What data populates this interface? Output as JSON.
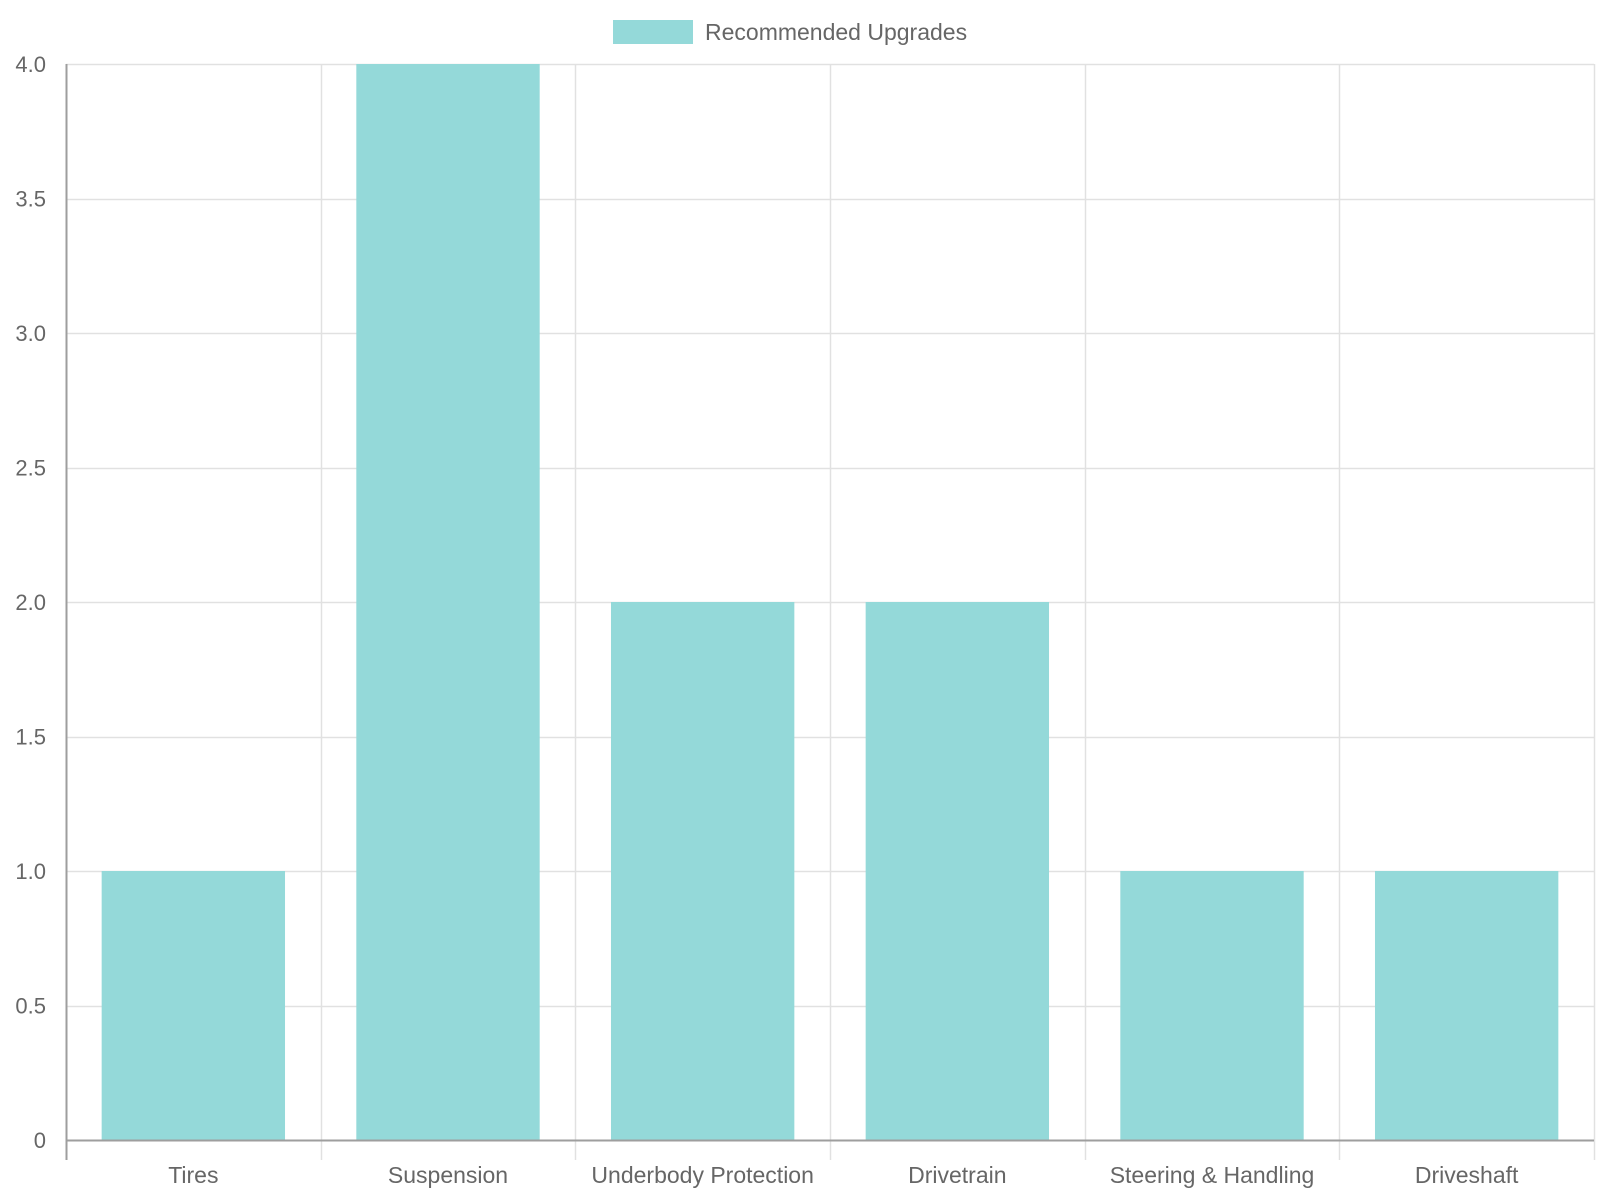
{
  "chart_data": {
    "type": "bar",
    "categories": [
      "Tires",
      "Suspension",
      "Underbody Protection",
      "Drivetrain",
      "Steering & Handling",
      "Driveshaft"
    ],
    "series": [
      {
        "name": "Recommended Upgrades",
        "values": [
          1,
          4,
          2,
          2,
          1,
          1
        ],
        "color": "#94d9d9"
      }
    ],
    "ylim": [
      0,
      4
    ],
    "yticks": [
      "0",
      "0.5",
      "1.0",
      "1.5",
      "2.0",
      "2.5",
      "3.0",
      "3.5",
      "4.0"
    ],
    "grid": true,
    "legend_position": "top"
  }
}
